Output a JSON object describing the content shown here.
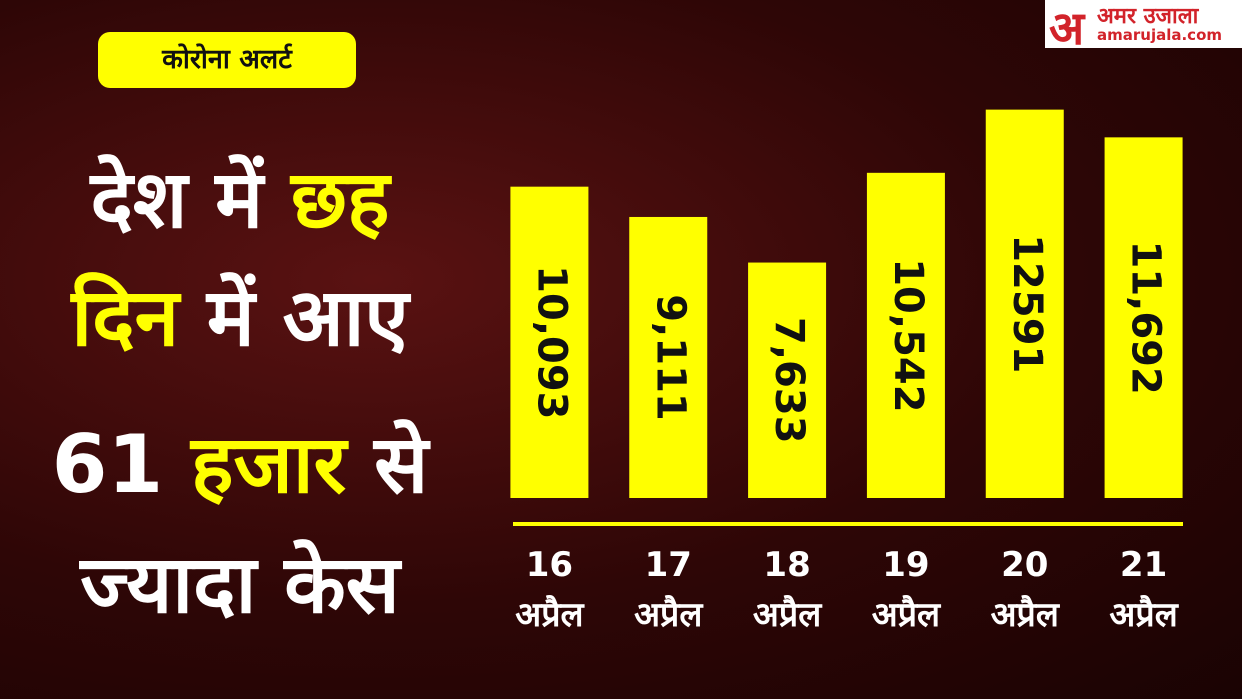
{
  "header": {
    "logo_mark": "अ",
    "logo_name": "अमर उजाला",
    "logo_site": "amarujala.com",
    "badge": "कोरोना अलर्ट",
    "headline": [
      [
        {
          "text": "देश में ",
          "highlight": false
        },
        {
          "text": "छह",
          "highlight": true
        }
      ],
      [
        {
          "text": "दिन",
          "highlight": true
        },
        {
          "text": " में आए",
          "highlight": false
        }
      ],
      [
        {
          "text": "61 ",
          "highlight": false
        },
        {
          "text": "हजार",
          "highlight": true
        },
        {
          "text": " से",
          "highlight": false
        }
      ],
      [
        {
          "text": "ज्यादा केस",
          "highlight": false
        }
      ]
    ]
  },
  "chart_data": {
    "type": "bar",
    "color": "#ffff00",
    "categories": [
      "16\nअप्रैल",
      "17\nअप्रैल",
      "18\nअप्रैल",
      "19\nअप्रैल",
      "20\nअप्रैल",
      "21\nअप्रैल"
    ],
    "values": [
      10093,
      9111,
      7633,
      10542,
      12591,
      11692
    ],
    "value_labels": [
      "10,093",
      "9,111",
      "7,633",
      "10,542",
      "12591",
      "11,692"
    ],
    "ylim": [
      0,
      13000
    ]
  }
}
